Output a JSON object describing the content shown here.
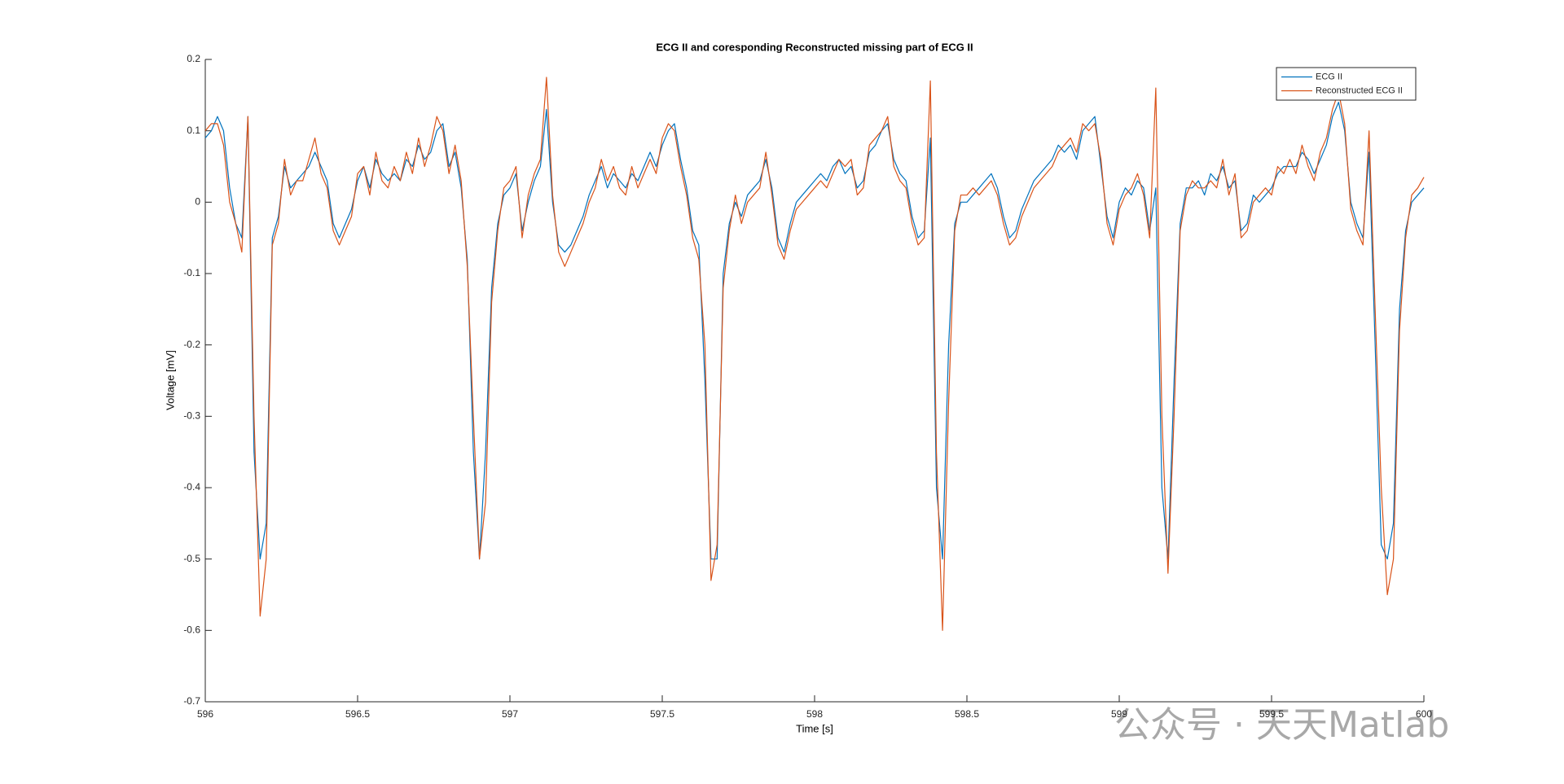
{
  "chart_data": {
    "type": "line",
    "title": "ECG II and coresponding Reconstructed missing part of ECG II",
    "xlabel": "Time [s]",
    "ylabel": "Voltage [mV]",
    "watermark": "公众号 · 天天Matlab",
    "xlim": [
      596,
      600
    ],
    "ylim": [
      -0.7,
      0.2
    ],
    "xticks": [
      596,
      596.5,
      597,
      597.5,
      598,
      598.5,
      599,
      599.5,
      600
    ],
    "yticks": [
      -0.7,
      -0.6,
      -0.5,
      -0.4,
      -0.3,
      -0.2,
      -0.1,
      0,
      0.1,
      0.2
    ],
    "grid": false,
    "legend": "northeast",
    "x": [
      596,
      596.02,
      596.04,
      596.06,
      596.08,
      596.1,
      596.12,
      596.14,
      596.16,
      596.18,
      596.2,
      596.22,
      596.24,
      596.26,
      596.28,
      596.3,
      596.32,
      596.34,
      596.36,
      596.38,
      596.4,
      596.42,
      596.44,
      596.46,
      596.48,
      596.5,
      596.52,
      596.54,
      596.56,
      596.58,
      596.6,
      596.62,
      596.64,
      596.66,
      596.68,
      596.7,
      596.72,
      596.74,
      596.76,
      596.78,
      596.8,
      596.82,
      596.84,
      596.86,
      596.88,
      596.9,
      596.92,
      596.94,
      596.96,
      596.98,
      597,
      597.02,
      597.04,
      597.06,
      597.08,
      597.1,
      597.12,
      597.14,
      597.16,
      597.18,
      597.2,
      597.22,
      597.24,
      597.26,
      597.28,
      597.3,
      597.32,
      597.34,
      597.36,
      597.38,
      597.4,
      597.42,
      597.44,
      597.46,
      597.48,
      597.5,
      597.52,
      597.54,
      597.56,
      597.58,
      597.6,
      597.62,
      597.64,
      597.66,
      597.68,
      597.7,
      597.72,
      597.74,
      597.76,
      597.78,
      597.8,
      597.82,
      597.84,
      597.86,
      597.88,
      597.9,
      597.92,
      597.94,
      597.96,
      597.98,
      598,
      598.02,
      598.04,
      598.06,
      598.08,
      598.1,
      598.12,
      598.14,
      598.16,
      598.18,
      598.2,
      598.22,
      598.24,
      598.26,
      598.28,
      598.3,
      598.32,
      598.34,
      598.36,
      598.38,
      598.4,
      598.42,
      598.44,
      598.46,
      598.48,
      598.5,
      598.52,
      598.54,
      598.56,
      598.58,
      598.6,
      598.62,
      598.64,
      598.66,
      598.68,
      598.7,
      598.72,
      598.74,
      598.76,
      598.78,
      598.8,
      598.82,
      598.84,
      598.86,
      598.88,
      598.9,
      598.92,
      598.94,
      598.96,
      598.98,
      599,
      599.02,
      599.04,
      599.06,
      599.08,
      599.1,
      599.12,
      599.14,
      599.16,
      599.18,
      599.2,
      599.22,
      599.24,
      599.26,
      599.28,
      599.3,
      599.32,
      599.34,
      599.36,
      599.38,
      599.4,
      599.42,
      599.44,
      599.46,
      599.48,
      599.5,
      599.52,
      599.54,
      599.56,
      599.58,
      599.6,
      599.62,
      599.64,
      599.66,
      599.68,
      599.7,
      599.72,
      599.74,
      599.76,
      599.78,
      599.8,
      599.82,
      599.84,
      599.86,
      599.88,
      599.9,
      599.92,
      599.94,
      599.96,
      599.98,
      600
    ],
    "series": [
      {
        "name": "ECG II",
        "color": "#0072BD",
        "values": [
          0.09,
          0.1,
          0.12,
          0.1,
          0.02,
          -0.03,
          -0.05,
          0.12,
          -0.35,
          -0.5,
          -0.45,
          -0.05,
          -0.02,
          0.05,
          0.02,
          0.03,
          0.04,
          0.05,
          0.07,
          0.05,
          0.03,
          -0.03,
          -0.05,
          -0.03,
          -0.01,
          0.03,
          0.05,
          0.02,
          0.06,
          0.04,
          0.03,
          0.04,
          0.03,
          0.06,
          0.05,
          0.08,
          0.06,
          0.07,
          0.1,
          0.11,
          0.05,
          0.07,
          0.02,
          -0.08,
          -0.35,
          -0.5,
          -0.35,
          -0.12,
          -0.03,
          0.01,
          0.02,
          0.04,
          -0.04,
          0.0,
          0.03,
          0.05,
          0.13,
          0.0,
          -0.06,
          -0.07,
          -0.06,
          -0.04,
          -0.02,
          0.01,
          0.03,
          0.05,
          0.02,
          0.04,
          0.03,
          0.02,
          0.04,
          0.03,
          0.05,
          0.07,
          0.05,
          0.08,
          0.1,
          0.11,
          0.06,
          0.02,
          -0.04,
          -0.06,
          -0.25,
          -0.5,
          -0.5,
          -0.1,
          -0.03,
          0.0,
          -0.02,
          0.01,
          0.02,
          0.03,
          0.06,
          0.02,
          -0.05,
          -0.07,
          -0.03,
          0.0,
          0.01,
          0.02,
          0.03,
          0.04,
          0.03,
          0.05,
          0.06,
          0.04,
          0.05,
          0.02,
          0.03,
          0.07,
          0.08,
          0.1,
          0.11,
          0.06,
          0.04,
          0.03,
          -0.02,
          -0.05,
          -0.04,
          0.09,
          -0.4,
          -0.5,
          -0.2,
          -0.03,
          0.0,
          0.0,
          0.01,
          0.02,
          0.03,
          0.04,
          0.02,
          -0.02,
          -0.05,
          -0.04,
          -0.01,
          0.01,
          0.03,
          0.04,
          0.05,
          0.06,
          0.08,
          0.07,
          0.08,
          0.06,
          0.1,
          0.11,
          0.12,
          0.05,
          -0.02,
          -0.05,
          0.0,
          0.02,
          0.01,
          0.03,
          0.02,
          -0.04,
          0.02,
          -0.4,
          -0.5,
          -0.25,
          -0.03,
          0.02,
          0.02,
          0.03,
          0.01,
          0.04,
          0.03,
          0.05,
          0.02,
          0.03,
          -0.04,
          -0.03,
          0.01,
          0.0,
          0.01,
          0.02,
          0.04,
          0.05,
          0.05,
          0.05,
          0.07,
          0.06,
          0.04,
          0.06,
          0.08,
          0.12,
          0.14,
          0.1,
          0.0,
          -0.03,
          -0.05,
          0.07,
          -0.2,
          -0.48,
          -0.5,
          -0.45,
          -0.15,
          -0.04,
          0.0,
          0.01,
          0.02
        ]
      },
      {
        "name": "Reconstructed ECG II",
        "color": "#D95319",
        "values": [
          0.1,
          0.11,
          0.11,
          0.08,
          0.0,
          -0.03,
          -0.07,
          0.12,
          -0.3,
          -0.58,
          -0.5,
          -0.06,
          -0.03,
          0.06,
          0.01,
          0.03,
          0.03,
          0.06,
          0.09,
          0.04,
          0.02,
          -0.04,
          -0.06,
          -0.04,
          -0.02,
          0.04,
          0.05,
          0.01,
          0.07,
          0.03,
          0.02,
          0.05,
          0.03,
          0.07,
          0.04,
          0.09,
          0.05,
          0.08,
          0.12,
          0.1,
          0.04,
          0.08,
          0.03,
          -0.09,
          -0.3,
          -0.5,
          -0.42,
          -0.14,
          -0.04,
          0.02,
          0.03,
          0.05,
          -0.05,
          0.01,
          0.04,
          0.06,
          0.175,
          0.01,
          -0.07,
          -0.09,
          -0.07,
          -0.05,
          -0.03,
          0.0,
          0.02,
          0.06,
          0.03,
          0.05,
          0.02,
          0.01,
          0.05,
          0.02,
          0.04,
          0.06,
          0.04,
          0.09,
          0.11,
          0.1,
          0.05,
          0.01,
          -0.05,
          -0.08,
          -0.2,
          -0.53,
          -0.48,
          -0.12,
          -0.04,
          0.01,
          -0.03,
          0.0,
          0.01,
          0.02,
          0.07,
          0.01,
          -0.06,
          -0.08,
          -0.04,
          -0.01,
          0.0,
          0.01,
          0.02,
          0.03,
          0.02,
          0.04,
          0.06,
          0.05,
          0.06,
          0.01,
          0.02,
          0.08,
          0.09,
          0.1,
          0.12,
          0.05,
          0.03,
          0.02,
          -0.03,
          -0.06,
          -0.05,
          0.17,
          -0.35,
          -0.6,
          -0.28,
          -0.04,
          0.01,
          0.01,
          0.02,
          0.01,
          0.02,
          0.03,
          0.01,
          -0.03,
          -0.06,
          -0.05,
          -0.02,
          0.0,
          0.02,
          0.03,
          0.04,
          0.05,
          0.07,
          0.08,
          0.09,
          0.07,
          0.11,
          0.1,
          0.11,
          0.06,
          -0.03,
          -0.06,
          -0.01,
          0.01,
          0.02,
          0.04,
          0.01,
          -0.05,
          0.16,
          -0.3,
          -0.52,
          -0.3,
          -0.04,
          0.01,
          0.03,
          0.02,
          0.02,
          0.03,
          0.02,
          0.06,
          0.01,
          0.04,
          -0.05,
          -0.04,
          0.0,
          0.01,
          0.02,
          0.01,
          0.05,
          0.04,
          0.06,
          0.04,
          0.08,
          0.05,
          0.03,
          0.07,
          0.09,
          0.13,
          0.155,
          0.11,
          -0.01,
          -0.04,
          -0.06,
          0.1,
          -0.15,
          -0.4,
          -0.55,
          -0.5,
          -0.18,
          -0.05,
          0.01,
          0.02,
          0.035
        ]
      }
    ]
  }
}
